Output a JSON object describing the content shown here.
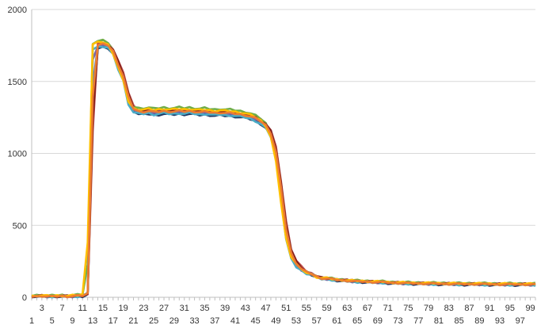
{
  "chart_data": {
    "type": "line",
    "title": "",
    "xlabel": "",
    "ylabel": "",
    "ylim": [
      0,
      2000
    ],
    "xlim": [
      1,
      100
    ],
    "grid": "horizontal",
    "legend": "none",
    "y_ticks": [
      "0",
      "500",
      "1000",
      "1500",
      "2000"
    ],
    "x_ticks_top": [
      "3",
      "7",
      "11",
      "15",
      "19",
      "23",
      "27",
      "31",
      "35",
      "39",
      "43",
      "47",
      "51",
      "55",
      "59",
      "63",
      "67",
      "71",
      "75",
      "79",
      "83",
      "87",
      "91",
      "95",
      "99"
    ],
    "x_ticks_bottom": [
      "1",
      "5",
      "9",
      "13",
      "17",
      "21",
      "25",
      "29",
      "33",
      "37",
      "41",
      "45",
      "49",
      "53",
      "57",
      "61",
      "65",
      "69",
      "73",
      "77",
      "81",
      "85",
      "89",
      "93",
      "97"
    ],
    "profile": [
      [
        1,
        5
      ],
      [
        2,
        8
      ],
      [
        3,
        10
      ],
      [
        4,
        5
      ],
      [
        5,
        5
      ],
      [
        6,
        8
      ],
      [
        7,
        10
      ],
      [
        8,
        5
      ],
      [
        9,
        8
      ],
      [
        10,
        10
      ],
      [
        11,
        12
      ],
      [
        12,
        30
      ],
      [
        13,
        1740
      ],
      [
        14,
        1755
      ],
      [
        15,
        1760
      ],
      [
        16,
        1750
      ],
      [
        17,
        1700
      ],
      [
        18,
        1600
      ],
      [
        19,
        1520
      ],
      [
        20,
        1360
      ],
      [
        21,
        1300
      ],
      [
        22,
        1290
      ],
      [
        23,
        1290
      ],
      [
        24,
        1295
      ],
      [
        25,
        1285
      ],
      [
        26,
        1290
      ],
      [
        27,
        1295
      ],
      [
        28,
        1290
      ],
      [
        29,
        1290
      ],
      [
        30,
        1295
      ],
      [
        31,
        1290
      ],
      [
        32,
        1295
      ],
      [
        33,
        1290
      ],
      [
        34,
        1285
      ],
      [
        35,
        1290
      ],
      [
        36,
        1285
      ],
      [
        37,
        1280
      ],
      [
        38,
        1285
      ],
      [
        39,
        1280
      ],
      [
        40,
        1280
      ],
      [
        41,
        1275
      ],
      [
        42,
        1270
      ],
      [
        43,
        1265
      ],
      [
        44,
        1255
      ],
      [
        45,
        1240
      ],
      [
        46,
        1220
      ],
      [
        47,
        1190
      ],
      [
        48,
        1130
      ],
      [
        49,
        980
      ],
      [
        50,
        700
      ],
      [
        51,
        420
      ],
      [
        52,
        280
      ],
      [
        53,
        225
      ],
      [
        54,
        190
      ],
      [
        55,
        170
      ],
      [
        56,
        160
      ],
      [
        57,
        140
      ],
      [
        58,
        130
      ],
      [
        59,
        130
      ],
      [
        60,
        125
      ],
      [
        61,
        120
      ],
      [
        62,
        118
      ],
      [
        63,
        115
      ],
      [
        64,
        112
      ],
      [
        65,
        110
      ],
      [
        66,
        110
      ],
      [
        67,
        108
      ],
      [
        68,
        106
      ],
      [
        69,
        105
      ],
      [
        70,
        105
      ],
      [
        71,
        102
      ],
      [
        72,
        100
      ],
      [
        73,
        100
      ],
      [
        74,
        98
      ],
      [
        75,
        98
      ],
      [
        76,
        97
      ],
      [
        77,
        96
      ],
      [
        78,
        96
      ],
      [
        79,
        95
      ],
      [
        80,
        95
      ],
      [
        81,
        94
      ],
      [
        82,
        94
      ],
      [
        83,
        93
      ],
      [
        84,
        93
      ],
      [
        85,
        92
      ],
      [
        86,
        92
      ],
      [
        87,
        92
      ],
      [
        88,
        92
      ],
      [
        89,
        91
      ],
      [
        90,
        91
      ],
      [
        91,
        91
      ],
      [
        92,
        90
      ],
      [
        93,
        90
      ],
      [
        94,
        90
      ],
      [
        95,
        90
      ],
      [
        96,
        90
      ],
      [
        97,
        90
      ],
      [
        98,
        90
      ],
      [
        99,
        89
      ],
      [
        100,
        89
      ]
    ],
    "series": [
      {
        "color": "#4f81bd",
        "offset": -10,
        "shift": 0.15
      },
      {
        "color": "#1f3864",
        "offset": -20,
        "shift": 0.25
      },
      {
        "color": "#c0504d",
        "offset": 10,
        "shift": 0.35
      },
      {
        "color": "#70ad47",
        "offset": 25,
        "shift": -0.1
      },
      {
        "color": "#8064a2",
        "offset": -5,
        "shift": 0.05
      },
      {
        "color": "#4bacc6",
        "offset": -15,
        "shift": 0.0
      },
      {
        "color": "#7f1d1d",
        "offset": 5,
        "shift": 0.3
      },
      {
        "color": "#ffc000",
        "offset": 15,
        "shift": -0.2
      },
      {
        "color": "#ed7d31",
        "offset": 0,
        "shift": 0.2
      }
    ]
  }
}
